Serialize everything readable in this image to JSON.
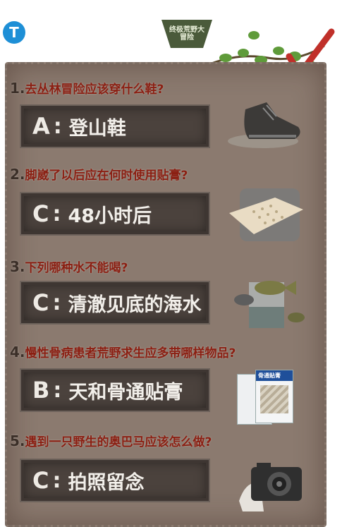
{
  "badge": {
    "text": "终极荒野大冒险"
  },
  "questions": [
    {
      "number": "1.",
      "text": "去丛林冒险应该穿什么鞋?",
      "answer_letter": "A",
      "answer_text": "登山鞋",
      "icon": "hiking-boot-icon"
    },
    {
      "number": "2.",
      "text": "脚崴了以后应在何时使用贴膏?",
      "answer_letter": "C",
      "answer_text": "48小时后",
      "icon": "plaster-icon"
    },
    {
      "number": "3.",
      "text": "下列哪种水不能喝?",
      "answer_letter": "C",
      "answer_text": "清澈见底的海水",
      "icon": "fish-water-glass-icon"
    },
    {
      "number": "4.",
      "text": "慢性骨病患者荒野求生应多带哪样物品?",
      "answer_letter": "B",
      "answer_text": "天和骨通贴膏",
      "icon": "medicine-box-icon",
      "product_label": "骨通贴膏"
    },
    {
      "number": "5.",
      "text": "遇到一只野生的奥巴马应该怎么做?",
      "answer_letter": "C",
      "answer_text": "拍照留念",
      "icon": "camera-icon"
    }
  ],
  "colors": {
    "board": "#8b7a6f",
    "question": "#8b1f12",
    "answer_box": "#4b423d",
    "checkmark": "#c0302a"
  }
}
